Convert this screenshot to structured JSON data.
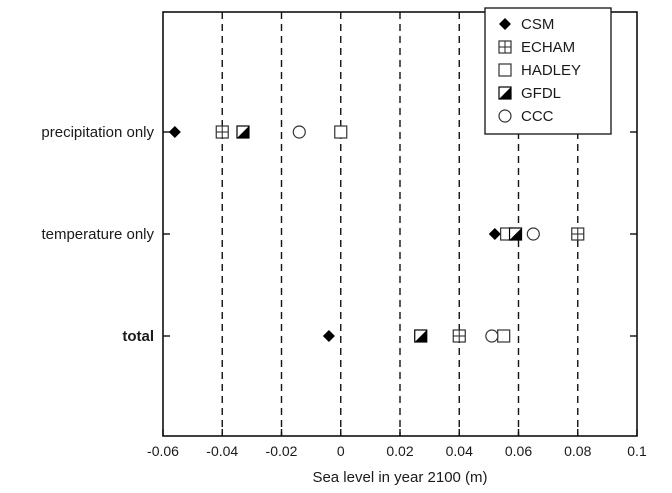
{
  "chart_data": {
    "type": "scatter",
    "xlabel": "Sea level in year 2100 (m)",
    "ylabel": "",
    "title": "",
    "xlim": [
      -0.06,
      0.1
    ],
    "x_ticks": [
      -0.06,
      -0.04,
      -0.02,
      0,
      0.02,
      0.04,
      0.06,
      0.08,
      0.1
    ],
    "x_tick_labels": [
      "-0.06",
      "-0.04",
      "-0.02",
      "0",
      "0.02",
      "0.04",
      "0.06",
      "0.08",
      "0.1"
    ],
    "grid": "vertical dashed",
    "legend_position": "top-right",
    "categories": [
      {
        "label": "precipitation only",
        "bold": false
      },
      {
        "label": "temperature only",
        "bold": false
      },
      {
        "label": "total",
        "bold": true
      }
    ],
    "series": [
      {
        "name": "CSM",
        "marker": "diamond",
        "values": [
          -0.056,
          0.052,
          -0.004
        ]
      },
      {
        "name": "ECHAM",
        "marker": "square-plus",
        "values": [
          -0.04,
          0.08,
          0.04
        ]
      },
      {
        "name": "HADLEY",
        "marker": "square",
        "values": [
          0.0,
          0.056,
          0.055
        ]
      },
      {
        "name": "GFDL",
        "marker": "half-square",
        "values": [
          -0.033,
          0.059,
          0.027
        ]
      },
      {
        "name": "CCC",
        "marker": "circle",
        "values": [
          -0.014,
          0.065,
          0.051
        ]
      }
    ]
  }
}
